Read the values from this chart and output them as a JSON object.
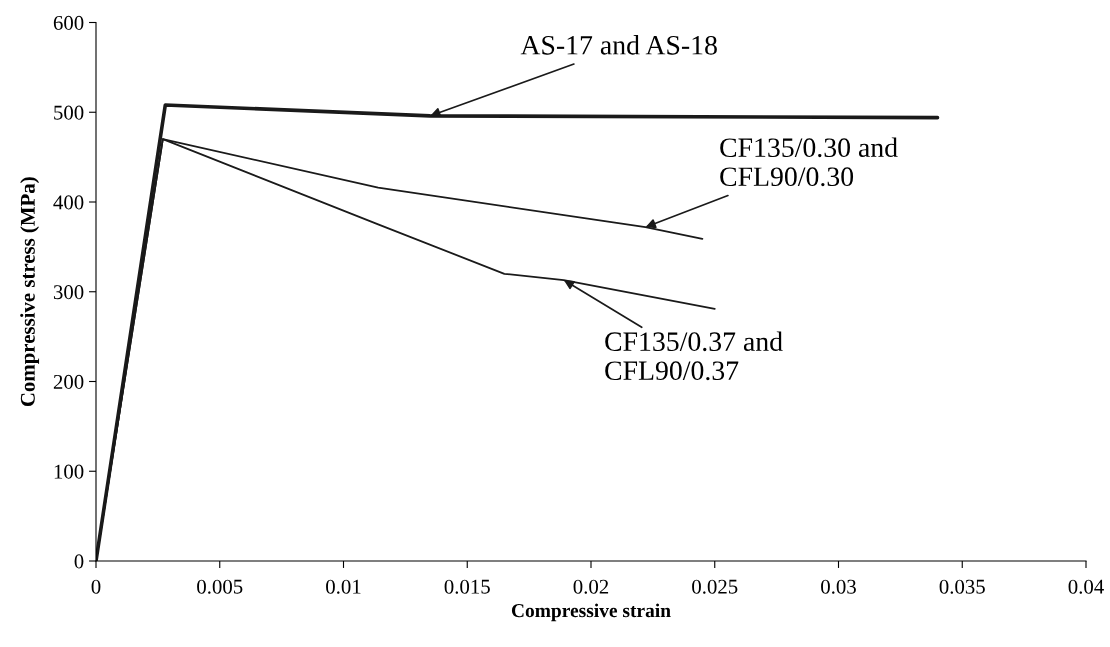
{
  "chart_data": {
    "type": "line",
    "xlabel": "Compressive strain",
    "ylabel": "Compressive stress (MPa)",
    "xlim": [
      0,
      0.04
    ],
    "xticks": [
      0,
      0.005,
      0.01,
      0.015,
      0.02,
      0.025,
      0.03,
      0.035,
      0.04
    ],
    "ylim": [
      0,
      600
    ],
    "yticks": [
      0,
      100,
      200,
      300,
      400,
      500,
      600
    ],
    "grid": false,
    "legend": false,
    "marker": "none",
    "line_style": "solid",
    "series": [
      {
        "color": "#1a1a1a",
        "x": [
          0,
          0.0028,
          0.0135,
          0.034
        ],
        "values": [
          0,
          508,
          496,
          494
        ]
      },
      {
        "color": "#1a1a1a",
        "x": [
          0,
          0.0027,
          0.0114,
          0.0222,
          0.0245
        ],
        "values": [
          0,
          470,
          416,
          372,
          359
        ]
      },
      {
        "color": "#1a1a1a",
        "x": [
          0,
          0.0027,
          0.0114,
          0.0165,
          0.0189,
          0.025
        ],
        "values": [
          0,
          470,
          375,
          320,
          313,
          281
        ]
      }
    ],
    "annotations": [
      {
        "text": "AS-17 and AS-18",
        "x": 0.0135,
        "y": 496
      },
      {
        "text": "CF135/0.30 and\nCFL90/0.30",
        "x": 0.0222,
        "y": 372
      },
      {
        "text": "CF135/0.37 and\nCFL90/0.37",
        "x": 0.0189,
        "y": 313
      }
    ]
  }
}
